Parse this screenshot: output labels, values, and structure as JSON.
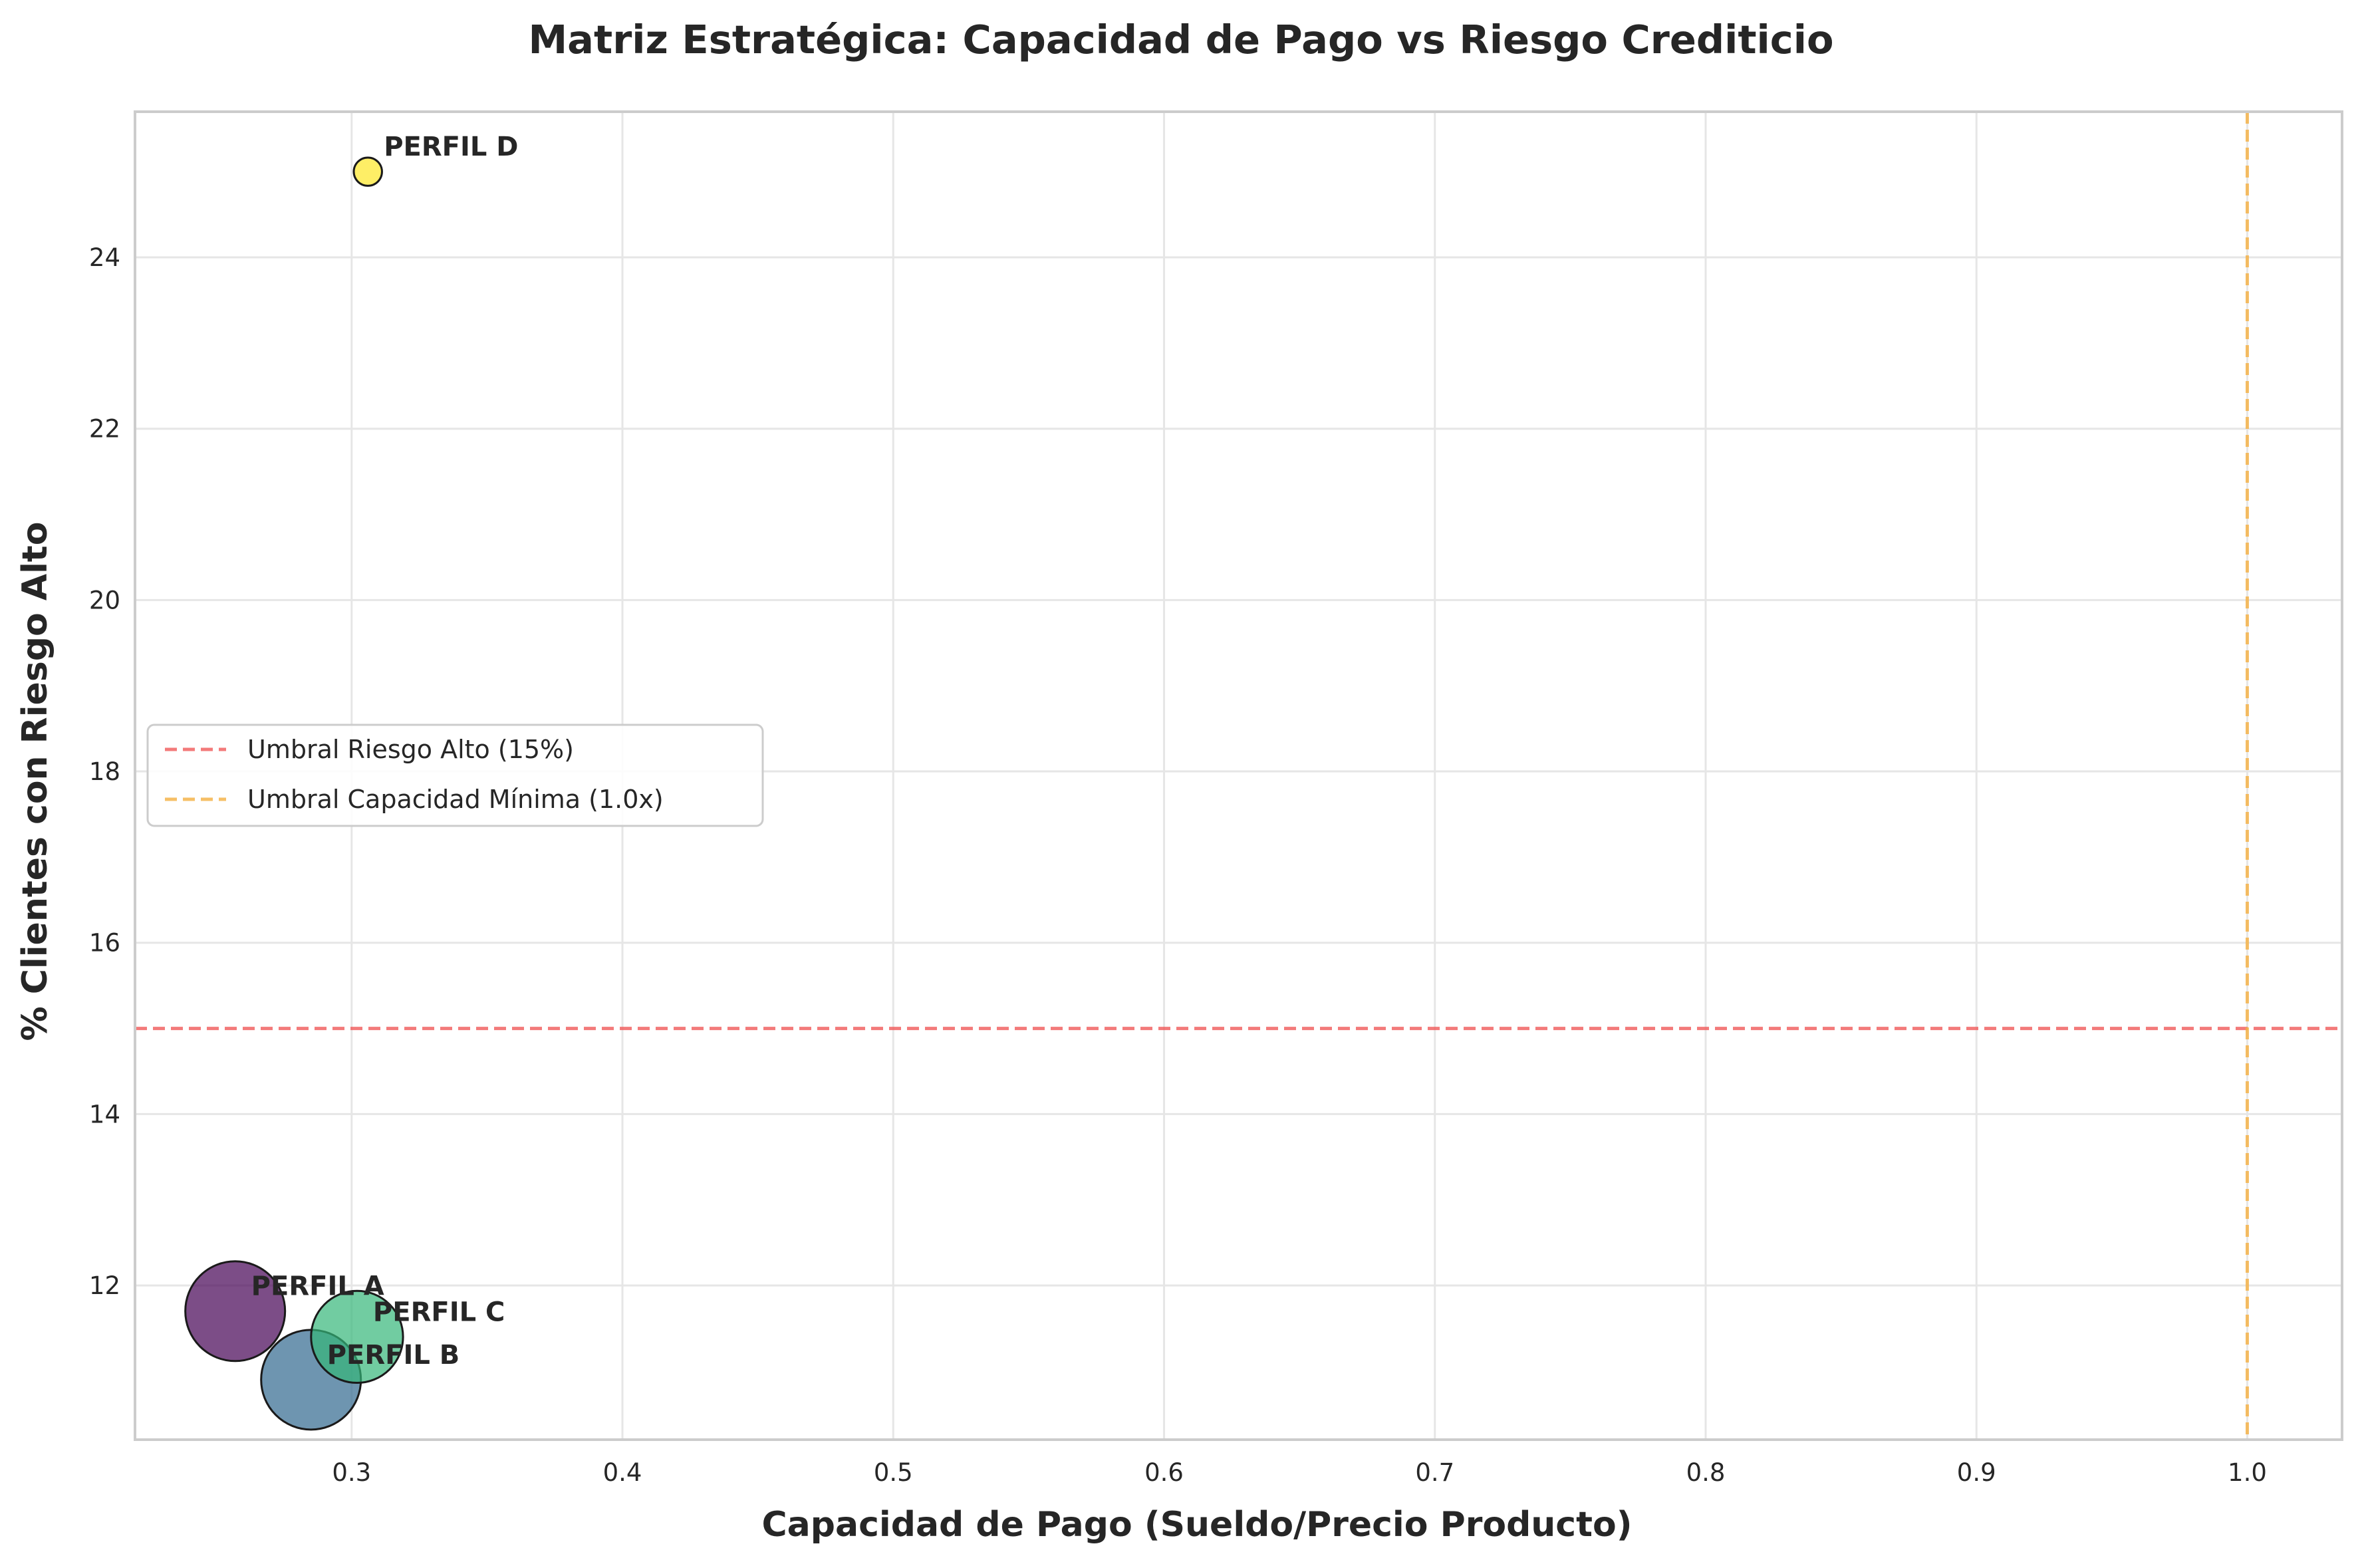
{
  "chart_data": {
    "type": "scatter",
    "title": "Matriz Estratégica: Capacidad de Pago vs Riesgo Crediticio",
    "xlabel": "Capacidad de Pago (Sueldo/Precio Producto)",
    "ylabel": "% Clientes con Riesgo Alto",
    "xlim": [
      0.22,
      1.035
    ],
    "ylim": [
      10.2,
      25.7
    ],
    "xticks": [
      0.3,
      0.4,
      0.5,
      0.6,
      0.7,
      0.8,
      0.9,
      1.0
    ],
    "xtick_labels": [
      "0.3",
      "0.4",
      "0.5",
      "0.6",
      "0.7",
      "0.8",
      "0.9",
      "1.0"
    ],
    "yticks": [
      12,
      14,
      16,
      18,
      20,
      22,
      24
    ],
    "ytick_labels": [
      "12",
      "14",
      "16",
      "18",
      "20",
      "22",
      "24"
    ],
    "grid": true,
    "legend_position": "center-left",
    "points": [
      {
        "label": "PERFIL A",
        "x": 0.257,
        "y": 11.7,
        "relative_size": 1.0,
        "color": "#440154"
      },
      {
        "label": "PERFIL B",
        "x": 0.285,
        "y": 10.9,
        "relative_size": 1.0,
        "color": "#31688e"
      },
      {
        "label": "PERFIL C",
        "x": 0.302,
        "y": 11.4,
        "relative_size": 0.85,
        "color": "#35b779"
      },
      {
        "label": "PERFIL D",
        "x": 0.306,
        "y": 25.0,
        "relative_size": 0.08,
        "color": "#fde725"
      }
    ],
    "reference_lines": [
      {
        "orientation": "horizontal",
        "value": 15,
        "color": "#f15a5a",
        "label": "Umbral Riesgo Alto (15%)"
      },
      {
        "orientation": "vertical",
        "value": 1.0,
        "color": "#f5b041",
        "label": "Umbral Capacidad Mínima (1.0x)"
      }
    ]
  }
}
